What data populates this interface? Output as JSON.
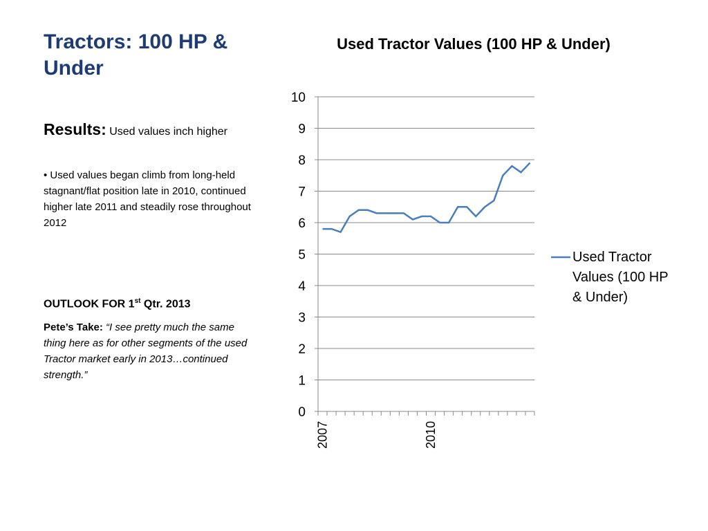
{
  "header": {
    "title": "Tractors: 100 HP & Under"
  },
  "results": {
    "label": "Results:",
    "summary": "Used values inch higher",
    "bullet": "• Used values began climb from long-held stagnant/flat position late in 2010, continued higher late 2011 and steadily rose throughout 2012"
  },
  "outlook": {
    "heading": "OUTLOOK FOR 1",
    "superscript": "st",
    "heading_rest": " Qtr. 2013",
    "take_label": "Pete’s Take:",
    "take_text": " “I see pretty much the same thing here as for other segments of the used Tractor market early in 2013…continued strength.”"
  },
  "chart_data": {
    "type": "line",
    "title": "Used Tractor Values (100 HP & Under)",
    "categories": [
      "2007",
      null,
      null,
      null,
      null,
      null,
      null,
      null,
      null,
      null,
      null,
      null,
      "2010",
      null,
      null,
      null,
      null,
      null,
      null,
      null,
      null,
      null,
      null,
      null
    ],
    "series": [
      {
        "name": "Used Tractor Values (100 HP & Under)",
        "color": "#4a7ebb",
        "values": [
          5.8,
          5.8,
          5.7,
          6.2,
          6.4,
          6.4,
          6.3,
          6.3,
          6.3,
          6.3,
          6.1,
          6.2,
          6.2,
          6.0,
          6.0,
          6.5,
          6.5,
          6.2,
          6.5,
          6.7,
          7.5,
          7.8,
          7.6,
          7.9
        ]
      }
    ],
    "ylim": [
      0,
      10
    ],
    "yticks": [
      0,
      1,
      2,
      3,
      4,
      5,
      6,
      7,
      8,
      9,
      10
    ],
    "grid": true,
    "legend": "right"
  }
}
